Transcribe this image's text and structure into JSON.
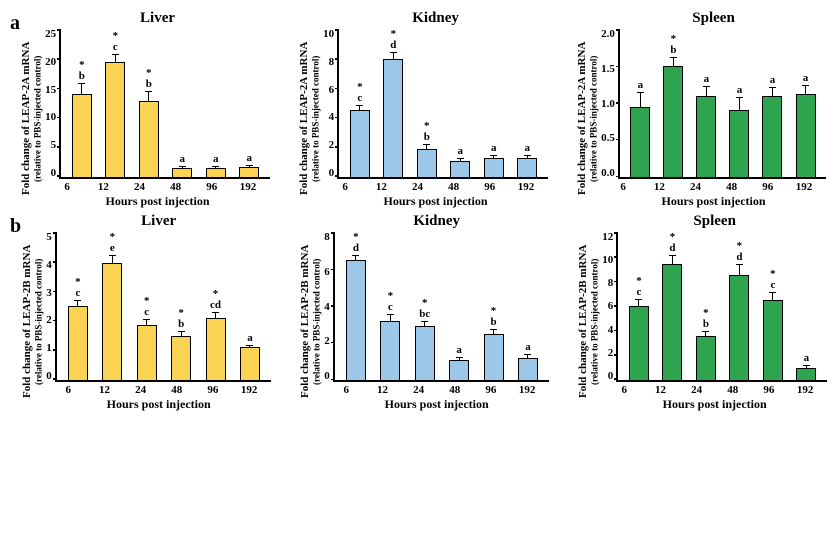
{
  "figure": {
    "background_color": "#ffffff",
    "font_family": "Georgia, Times New Roman, serif",
    "x_label": "Hours post injection",
    "x_categories": [
      "6",
      "12",
      "24",
      "48",
      "96",
      "192"
    ],
    "colors": {
      "liver": "#f9d351",
      "kidney": "#9cc7e8",
      "spleen": "#2ea44f",
      "border": "#000000"
    }
  },
  "rows": [
    {
      "id": "a",
      "label": "a",
      "y_label_main": "Fold change of LEAP-2A mRNA",
      "y_label_sub": "(relative to PBS-injected control)",
      "panels": [
        {
          "title": "Liver",
          "color_key": "liver",
          "ymax": 25,
          "ytick_step": 5,
          "bars": [
            {
              "value": 14.0,
              "err": 1.8,
              "annot": "*\nb"
            },
            {
              "value": 19.5,
              "err": 1.2,
              "annot": "*\nc"
            },
            {
              "value": 12.8,
              "err": 1.8,
              "annot": "*\nb"
            },
            {
              "value": 1.5,
              "err": 0.4,
              "annot": "a"
            },
            {
              "value": 1.5,
              "err": 0.4,
              "annot": "a"
            },
            {
              "value": 1.7,
              "err": 0.4,
              "annot": "a"
            }
          ]
        },
        {
          "title": "Kidney",
          "color_key": "kidney",
          "ymax": 10,
          "ytick_step": 2,
          "bars": [
            {
              "value": 4.5,
              "err": 0.4,
              "annot": "*\nc"
            },
            {
              "value": 8.5,
              "err": 0.5,
              "annot": "*\nd"
            },
            {
              "value": 1.9,
              "err": 0.3,
              "annot": "*\nb"
            },
            {
              "value": 1.1,
              "err": 0.2,
              "annot": "a"
            },
            {
              "value": 1.3,
              "err": 0.2,
              "annot": "a"
            },
            {
              "value": 1.3,
              "err": 0.2,
              "annot": "a"
            }
          ]
        },
        {
          "title": "Spleen",
          "color_key": "spleen",
          "ymax": 2,
          "ytick_step": 0.5,
          "bars": [
            {
              "value": 0.95,
              "err": 0.2,
              "annot": "a"
            },
            {
              "value": 1.5,
              "err": 0.12,
              "annot": "*\nb"
            },
            {
              "value": 1.1,
              "err": 0.13,
              "annot": "a"
            },
            {
              "value": 0.9,
              "err": 0.18,
              "annot": "a"
            },
            {
              "value": 1.1,
              "err": 0.12,
              "annot": "a"
            },
            {
              "value": 1.12,
              "err": 0.13,
              "annot": "a"
            }
          ]
        }
      ]
    },
    {
      "id": "b",
      "label": "b",
      "y_label_main": "Fold change of LEAP-2B mRNA",
      "y_label_sub": "(relative to PBS-injected control)",
      "panels": [
        {
          "title": "Liver",
          "color_key": "liver",
          "ymax": 5,
          "ytick_step": 1,
          "bars": [
            {
              "value": 2.5,
              "err": 0.2,
              "annot": "*\nc"
            },
            {
              "value": 4.3,
              "err": 0.3,
              "annot": "*\ne"
            },
            {
              "value": 1.85,
              "err": 0.2,
              "annot": "*\nc"
            },
            {
              "value": 1.5,
              "err": 0.15,
              "annot": "*\nb"
            },
            {
              "value": 2.1,
              "err": 0.2,
              "annot": "*\ncd"
            },
            {
              "value": 1.1,
              "err": 0.1,
              "annot": "a"
            }
          ]
        },
        {
          "title": "Kidney",
          "color_key": "kidney",
          "ymax": 8,
          "ytick_step": 2,
          "bars": [
            {
              "value": 6.9,
              "err": 0.3,
              "annot": "*\nd"
            },
            {
              "value": 3.2,
              "err": 0.35,
              "annot": "*\nc"
            },
            {
              "value": 2.9,
              "err": 0.3,
              "annot": "*\nbc"
            },
            {
              "value": 1.1,
              "err": 0.15,
              "annot": "a"
            },
            {
              "value": 2.5,
              "err": 0.25,
              "annot": "*\nb"
            },
            {
              "value": 1.2,
              "err": 0.2,
              "annot": "a"
            }
          ]
        },
        {
          "title": "Spleen",
          "color_key": "spleen",
          "ymax": 12,
          "ytick_step": 2,
          "bars": [
            {
              "value": 6.0,
              "err": 0.6,
              "annot": "*\nc"
            },
            {
              "value": 9.5,
              "err": 0.7,
              "annot": "*\nd"
            },
            {
              "value": 3.6,
              "err": 0.4,
              "annot": "*\nb"
            },
            {
              "value": 8.5,
              "err": 0.9,
              "annot": "*\nd"
            },
            {
              "value": 6.5,
              "err": 0.6,
              "annot": "*\nc"
            },
            {
              "value": 1.0,
              "err": 0.2,
              "annot": "a"
            }
          ]
        }
      ]
    }
  ]
}
